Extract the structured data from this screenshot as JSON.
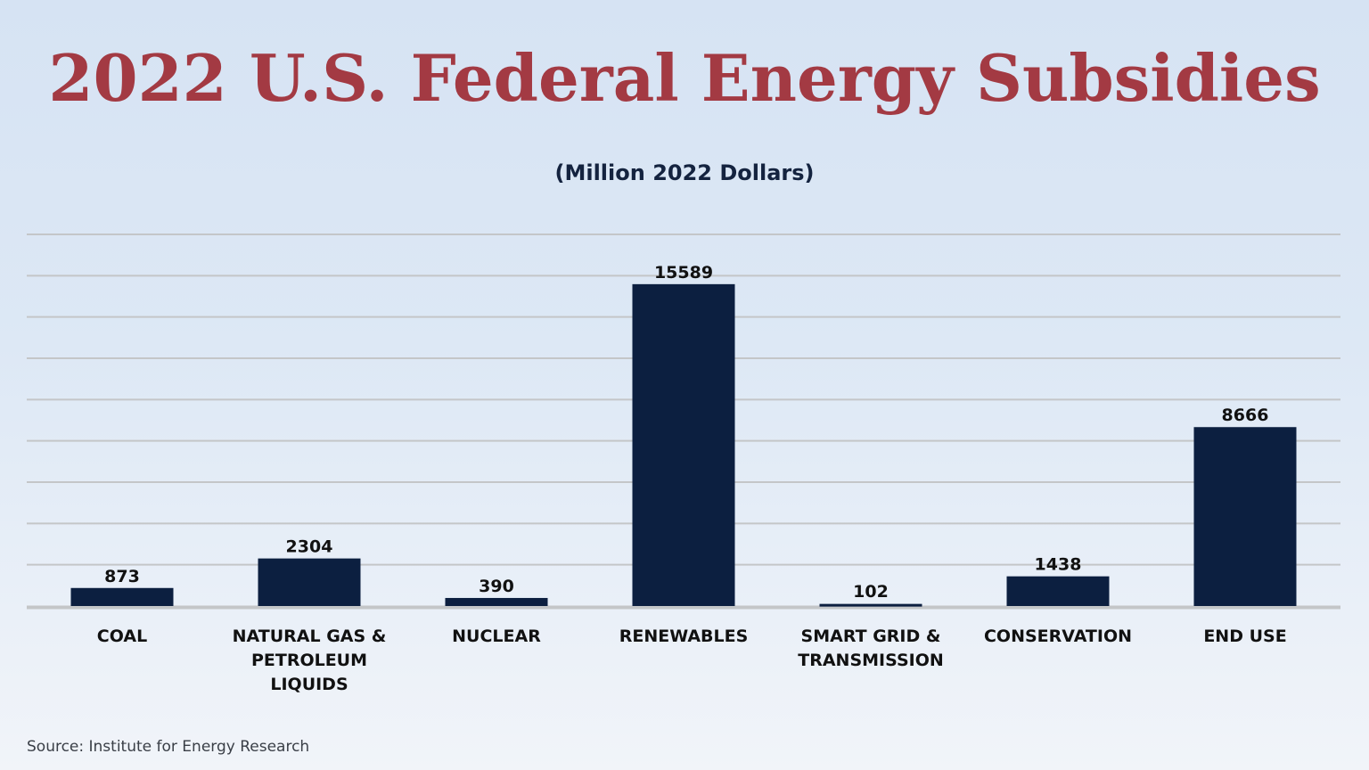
{
  "chart_data": {
    "type": "bar",
    "title": "2022 U.S. Federal Energy Subsidies",
    "subtitle": "(Million 2022 Dollars)",
    "categories": [
      [
        "COAL"
      ],
      [
        "NATURAL GAS &",
        "PETROLEUM",
        "LIQUIDS"
      ],
      [
        "NUCLEAR"
      ],
      [
        "RENEWABLES"
      ],
      [
        "SMART GRID &",
        "TRANSMISSION"
      ],
      [
        "CONSERVATION"
      ],
      [
        "END USE"
      ]
    ],
    "values": [
      873,
      2304,
      390,
      15589,
      102,
      1438,
      8666
    ],
    "value_labels": [
      "873",
      "2304",
      "390",
      "15589",
      "102",
      "1438",
      "8666"
    ],
    "ylim": [
      0,
      18000
    ],
    "grid": true,
    "bar_color": "#0c1f40",
    "grid_color": "#c4c6c8"
  },
  "source": "Source: Institute for Energy Research"
}
